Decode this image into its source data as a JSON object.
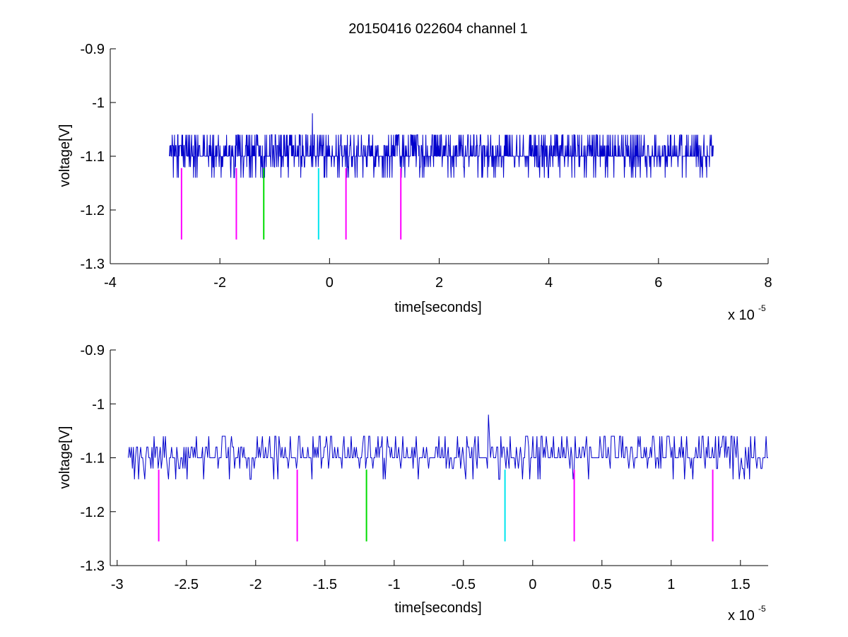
{
  "figure": {
    "title": "20150416 022604 channel 1"
  },
  "chart_data": [
    {
      "type": "line",
      "title": "20150416 022604 channel 1",
      "xlabel": "time[seconds]",
      "ylabel": "voltage[V]",
      "x_exponent_label": "x 10",
      "x_exponent": "-5",
      "xlim": [
        -4,
        8
      ],
      "ylim": [
        -1.3,
        -0.9
      ],
      "xticks": [
        -4,
        -2,
        0,
        2,
        4,
        6,
        8
      ],
      "xtick_labels": [
        "-4",
        "-2",
        "0",
        "2",
        "4",
        "6",
        "8"
      ],
      "yticks": [
        -0.9,
        -1,
        -1.1,
        -1.2,
        -1.3
      ],
      "ytick_labels": [
        "-0.9",
        "-1",
        "-1.1",
        "-1.2",
        "-1.3"
      ],
      "grid": false,
      "signal": {
        "color": "#0000cc",
        "x_range": [
          -2.92,
          7.0
        ],
        "baseline": -1.1,
        "levels": [
          -1.14,
          -1.12,
          -1.1,
          -1.08,
          -1.06
        ],
        "peak": {
          "x": -0.31,
          "y": -1.02
        }
      },
      "markers": [
        {
          "x": -2.7,
          "color": "#ff00ff",
          "y_range": [
            -1.255,
            -1.122
          ]
        },
        {
          "x": -1.7,
          "color": "#ff00ff",
          "y_range": [
            -1.255,
            -1.122
          ]
        },
        {
          "x": -1.2,
          "color": "#00dd00",
          "y_range": [
            -1.255,
            -1.122
          ]
        },
        {
          "x": -0.2,
          "color": "#00e5ee",
          "y_range": [
            -1.255,
            -1.122
          ]
        },
        {
          "x": 0.3,
          "color": "#ff00ff",
          "y_range": [
            -1.255,
            -1.122
          ]
        },
        {
          "x": 1.3,
          "color": "#ff00ff",
          "y_range": [
            -1.255,
            -1.122
          ]
        }
      ]
    },
    {
      "type": "line",
      "xlabel": "time[seconds]",
      "ylabel": "voltage[V]",
      "x_exponent_label": "x 10",
      "x_exponent": "-5",
      "xlim": [
        -3.05,
        1.7
      ],
      "ylim": [
        -1.3,
        -0.9
      ],
      "xticks": [
        -3,
        -2.5,
        -2,
        -1.5,
        -1,
        -0.5,
        0,
        0.5,
        1,
        1.5
      ],
      "xtick_labels": [
        "-3",
        "-2.5",
        "-2",
        "-1.5",
        "-1",
        "-0.5",
        "0",
        "0.5",
        "1",
        "1.5"
      ],
      "yticks": [
        -0.9,
        -1,
        -1.1,
        -1.2,
        -1.3
      ],
      "ytick_labels": [
        "-0.9",
        "-1",
        "-1.1",
        "-1.2",
        "-1.3"
      ],
      "grid": false,
      "signal": {
        "color": "#0000cc",
        "x_range": [
          -2.92,
          1.7
        ],
        "baseline": -1.1,
        "levels": [
          -1.14,
          -1.12,
          -1.1,
          -1.08,
          -1.06
        ],
        "peak": {
          "x": -0.32,
          "y": -1.02
        }
      },
      "markers": [
        {
          "x": -2.7,
          "color": "#ff00ff",
          "y_range": [
            -1.255,
            -1.122
          ]
        },
        {
          "x": -1.7,
          "color": "#ff00ff",
          "y_range": [
            -1.255,
            -1.122
          ]
        },
        {
          "x": -1.2,
          "color": "#00dd00",
          "y_range": [
            -1.255,
            -1.122
          ]
        },
        {
          "x": -0.2,
          "color": "#00e5ee",
          "y_range": [
            -1.255,
            -1.122
          ]
        },
        {
          "x": 0.3,
          "color": "#ff00ff",
          "y_range": [
            -1.255,
            -1.122
          ]
        },
        {
          "x": 1.3,
          "color": "#ff00ff",
          "y_range": [
            -1.255,
            -1.122
          ]
        }
      ]
    }
  ]
}
